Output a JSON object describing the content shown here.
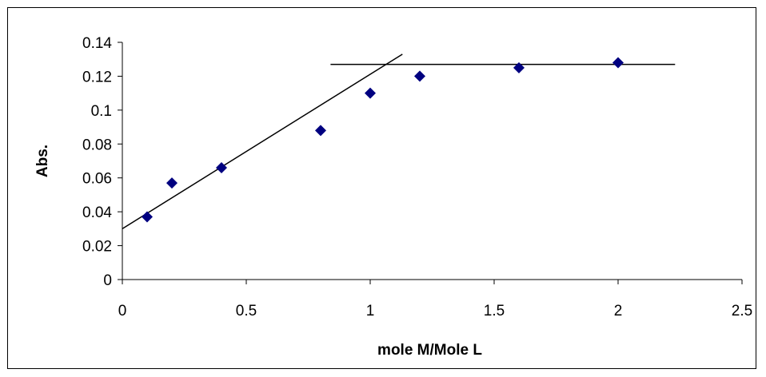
{
  "chart_data": {
    "type": "scatter",
    "title": "",
    "xlabel": "mole M/Mole L",
    "ylabel": "Abs.",
    "xlim": [
      0,
      2.5
    ],
    "ylim": [
      0,
      0.14
    ],
    "x_ticks": [
      "0",
      "0.5",
      "1",
      "1.5",
      "2",
      "2.5"
    ],
    "y_ticks": [
      "0",
      "0.02",
      "0.04",
      "0.06",
      "0.08",
      "0.1",
      "0.12",
      "0.14"
    ],
    "x_tick_values": [
      0,
      0.5,
      1,
      1.5,
      2,
      2.5
    ],
    "y_tick_values": [
      0,
      0.02,
      0.04,
      0.06,
      0.08,
      0.1,
      0.12,
      0.14
    ],
    "grid": false,
    "legend": "none",
    "series": [
      {
        "x": [
          0.1,
          0.2,
          0.4,
          0.8,
          1.0,
          1.2,
          1.6,
          2.0
        ],
        "y": [
          0.037,
          0.057,
          0.066,
          0.088,
          0.11,
          0.12,
          0.125,
          0.128
        ],
        "marker": "diamond",
        "color": "#000080"
      }
    ],
    "lines": [
      {
        "x": [
          0.0,
          1.13
        ],
        "y": [
          0.03,
          0.133
        ],
        "color": "#000000"
      },
      {
        "x": [
          0.84,
          2.23
        ],
        "y": [
          0.127,
          0.127
        ],
        "color": "#000000"
      }
    ]
  }
}
